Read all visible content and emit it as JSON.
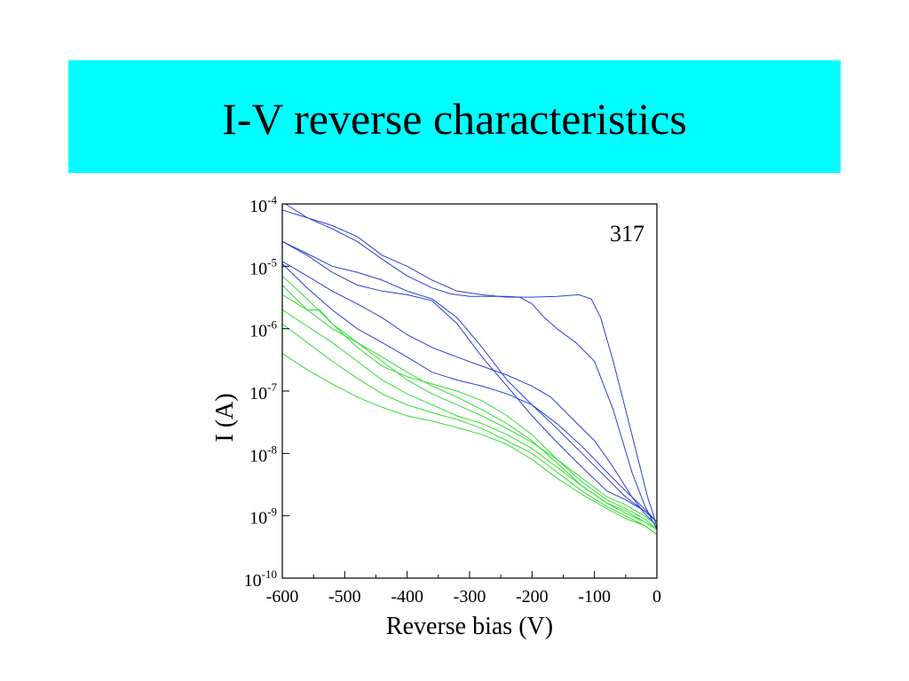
{
  "slide": {
    "title": "I-V reverse characteristics"
  },
  "colors": {
    "title_bg": "#00ffff",
    "blue_series": "#2b3fd6",
    "green_series": "#33dd33"
  },
  "chart_data": {
    "type": "line",
    "annotation": "317",
    "xlabel": "Reverse bias (V)",
    "ylabel": "I (A)",
    "xlim": [
      -600,
      0
    ],
    "ylim": [
      1e-10,
      0.0001
    ],
    "yscale": "log",
    "grid": false,
    "xticks": [
      "-600",
      "-500",
      "-400",
      "-300",
      "-200",
      "-100",
      "0"
    ],
    "yticks": [
      {
        "value": 0.0001,
        "base": "10",
        "exp": "-4"
      },
      {
        "value": 1e-05,
        "base": "10",
        "exp": "-5"
      },
      {
        "value": 1e-06,
        "base": "10",
        "exp": "-6"
      },
      {
        "value": 1e-07,
        "base": "10",
        "exp": "-7"
      },
      {
        "value": 1e-08,
        "base": "10",
        "exp": "-8"
      },
      {
        "value": 1e-09,
        "base": "10",
        "exp": "-9"
      },
      {
        "value": 1e-10,
        "base": "10",
        "exp": "-10"
      }
    ],
    "series": [
      {
        "color": "blue",
        "x": [
          -595,
          -560,
          -520,
          -480,
          -440,
          -400,
          -360,
          -320,
          -280,
          -240,
          -200,
          -160,
          -125,
          -105,
          -90,
          -70,
          -50,
          -30,
          -15,
          -5,
          0
        ],
        "y": [
          0.0001,
          6e-05,
          4.5e-05,
          3e-05,
          1.5e-05,
          1e-05,
          6e-06,
          4e-06,
          3.5e-06,
          3.2e-06,
          3.2e-06,
          3.3e-06,
          3.5e-06,
          3e-06,
          1.5e-06,
          3e-07,
          5e-08,
          8e-09,
          2e-09,
          1e-09,
          6e-10
        ]
      },
      {
        "color": "blue",
        "x": [
          -600,
          -560,
          -520,
          -480,
          -440,
          -400,
          -360,
          -330,
          -300,
          -280,
          -260,
          -240,
          -220,
          -200,
          -180,
          -160,
          -130,
          -100,
          -70,
          -40,
          -20,
          0
        ],
        "y": [
          8e-05,
          6e-05,
          4e-05,
          2.5e-05,
          1.3e-05,
          7e-06,
          4.5e-06,
          3.6e-06,
          3.3e-06,
          3.3e-06,
          3.3e-06,
          3.3e-06,
          3.2e-06,
          2.5e-06,
          1.5e-06,
          1e-06,
          6e-07,
          3e-07,
          5e-08,
          5e-09,
          1.5e-09,
          6e-10
        ]
      },
      {
        "color": "blue",
        "x": [
          -600,
          -560,
          -520,
          -480,
          -440,
          -400,
          -360,
          -320,
          -280,
          -240,
          -200,
          -160,
          -120,
          -80,
          -50,
          -20,
          0
        ],
        "y": [
          2.5e-05,
          1.6e-05,
          1e-05,
          8e-06,
          6e-06,
          4e-06,
          3e-06,
          1.5e-06,
          5e-07,
          1.5e-07,
          6e-08,
          2.5e-08,
          1e-08,
          4e-09,
          2e-09,
          1.2e-09,
          8e-10
        ]
      },
      {
        "color": "blue",
        "x": [
          -600,
          -560,
          -520,
          -480,
          -440,
          -400,
          -360,
          -320,
          -280,
          -240,
          -200,
          -160,
          -120,
          -80,
          -50,
          -20,
          0
        ],
        "y": [
          2.5e-05,
          1.5e-05,
          8e-06,
          5e-06,
          4e-06,
          3.5e-06,
          2.8e-06,
          1.2e-06,
          3.5e-07,
          1.2e-07,
          4e-08,
          1.5e-08,
          6e-09,
          2.5e-09,
          1.8e-09,
          1.2e-09,
          8e-10
        ]
      },
      {
        "color": "blue",
        "x": [
          -600,
          -560,
          -520,
          -480,
          -440,
          -400,
          -360,
          -320,
          -280,
          -240,
          -200,
          -170,
          -140,
          -100,
          -70,
          -40,
          -20,
          0
        ],
        "y": [
          1.2e-05,
          7e-06,
          4e-06,
          2.5e-06,
          1.5e-06,
          8e-07,
          5e-07,
          3.5e-07,
          2.5e-07,
          1.8e-07,
          1.2e-07,
          8e-08,
          4e-08,
          1.6e-08,
          6e-09,
          2e-09,
          1.1e-09,
          7e-10
        ]
      },
      {
        "color": "blue",
        "x": [
          -600,
          -560,
          -520,
          -480,
          -440,
          -400,
          -360,
          -320,
          -280,
          -240,
          -200,
          -160,
          -120,
          -80,
          -50,
          -20,
          0
        ],
        "y": [
          1.1e-05,
          4.5e-06,
          2e-06,
          1e-06,
          6e-07,
          3.5e-07,
          2e-07,
          1.5e-07,
          1.2e-07,
          9e-08,
          6e-08,
          3e-08,
          1.3e-08,
          5e-09,
          2.5e-09,
          1.3e-09,
          8e-10
        ]
      },
      {
        "color": "green",
        "x": [
          -600,
          -560,
          -520,
          -480,
          -440,
          -400,
          -360,
          -320,
          -280,
          -240,
          -200,
          -160,
          -120,
          -80,
          -50,
          -20,
          0
        ],
        "y": [
          7e-06,
          3e-06,
          1.2e-06,
          5e-07,
          2.5e-07,
          1.7e-07,
          1.3e-07,
          1e-07,
          7e-08,
          4e-08,
          2e-08,
          8e-09,
          4e-09,
          2e-09,
          1.5e-09,
          1e-09,
          7e-10
        ]
      },
      {
        "color": "green",
        "x": [
          -600,
          -560,
          -540,
          -520,
          -480,
          -440,
          -400,
          -360,
          -320,
          -280,
          -240,
          -200,
          -160,
          -120,
          -80,
          -50,
          -20,
          0
        ],
        "y": [
          3.5e-06,
          2e-06,
          2e-06,
          1.2e-06,
          6e-07,
          3e-07,
          1.5e-07,
          9e-08,
          6e-08,
          4e-08,
          2.5e-08,
          1.5e-08,
          8e-09,
          3.5e-09,
          1.8e-09,
          1.3e-09,
          9e-10,
          6e-10
        ]
      },
      {
        "color": "green",
        "x": [
          -600,
          -560,
          -520,
          -480,
          -440,
          -400,
          -360,
          -320,
          -280,
          -240,
          -200,
          -160,
          -120,
          -80,
          -50,
          -20,
          0
        ],
        "y": [
          2e-06,
          1.1e-06,
          6e-07,
          3e-07,
          1.5e-07,
          9e-08,
          6e-08,
          4e-08,
          3e-08,
          2e-08,
          1.2e-08,
          6e-09,
          3e-09,
          1.6e-09,
          1.2e-09,
          8e-10,
          6e-10
        ]
      },
      {
        "color": "green",
        "x": [
          -600,
          -560,
          -520,
          -480,
          -440,
          -400,
          -360,
          -320,
          -280,
          -240,
          -200,
          -160,
          -120,
          -80,
          -50,
          -20,
          0
        ],
        "y": [
          1.2e-06,
          6e-07,
          3e-07,
          1.6e-07,
          9e-08,
          6e-08,
          4.5e-08,
          3.5e-08,
          2.5e-08,
          1.6e-08,
          1e-08,
          5e-09,
          2.5e-09,
          1.4e-09,
          1e-09,
          7e-10,
          5e-10
        ]
      },
      {
        "color": "green",
        "x": [
          -600,
          -560,
          -520,
          -480,
          -440,
          -400,
          -360,
          -320,
          -280,
          -240,
          -200,
          -160,
          -120,
          -80,
          -50,
          -20,
          0
        ],
        "y": [
          4e-07,
          2.2e-07,
          1.3e-07,
          8e-08,
          5.5e-08,
          4e-08,
          3.3e-08,
          2.6e-08,
          2e-08,
          1.4e-08,
          8e-09,
          4e-09,
          2.2e-09,
          1.3e-09,
          9e-10,
          7e-10,
          5e-10
        ]
      },
      {
        "color": "green",
        "x": [
          -600,
          -560,
          -520,
          -480,
          -440,
          -400,
          -360,
          -320,
          -280,
          -240,
          -200,
          -160,
          -120,
          -80,
          -50,
          -20,
          0
        ],
        "y": [
          5e-06,
          2e-06,
          1e-06,
          6e-07,
          3.5e-07,
          2e-07,
          1.2e-07,
          8e-08,
          5e-08,
          3e-08,
          1.6e-08,
          7e-09,
          3e-09,
          1.6e-09,
          1.1e-09,
          8e-10,
          6e-10
        ]
      }
    ]
  }
}
